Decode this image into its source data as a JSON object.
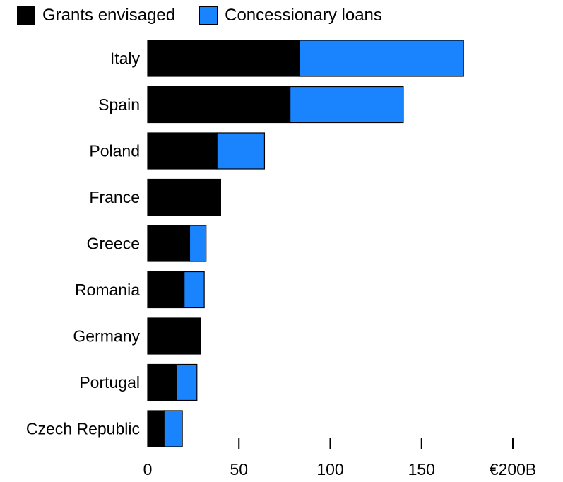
{
  "chart_data": {
    "type": "bar",
    "orientation": "horizontal",
    "stacked": true,
    "categories": [
      "Italy",
      "Spain",
      "Poland",
      "France",
      "Greece",
      "Romania",
      "Germany",
      "Portugal",
      "Czech Republic"
    ],
    "series": [
      {
        "name": "Grants envisaged",
        "color": "#000000",
        "values": [
          83,
          78,
          38,
          40,
          23,
          20,
          29,
          16,
          9
        ]
      },
      {
        "name": "Concessionary loans",
        "color": "#1a84ff",
        "values": [
          90,
          62,
          26,
          0,
          9,
          11,
          0,
          11,
          10
        ]
      }
    ],
    "x_ticks": [
      "0",
      "50",
      "100",
      "150",
      "€200B"
    ],
    "x_tick_values": [
      0,
      50,
      100,
      150,
      200
    ],
    "xlim": [
      0,
      200
    ],
    "grid": false,
    "legend_position": "top-left"
  }
}
